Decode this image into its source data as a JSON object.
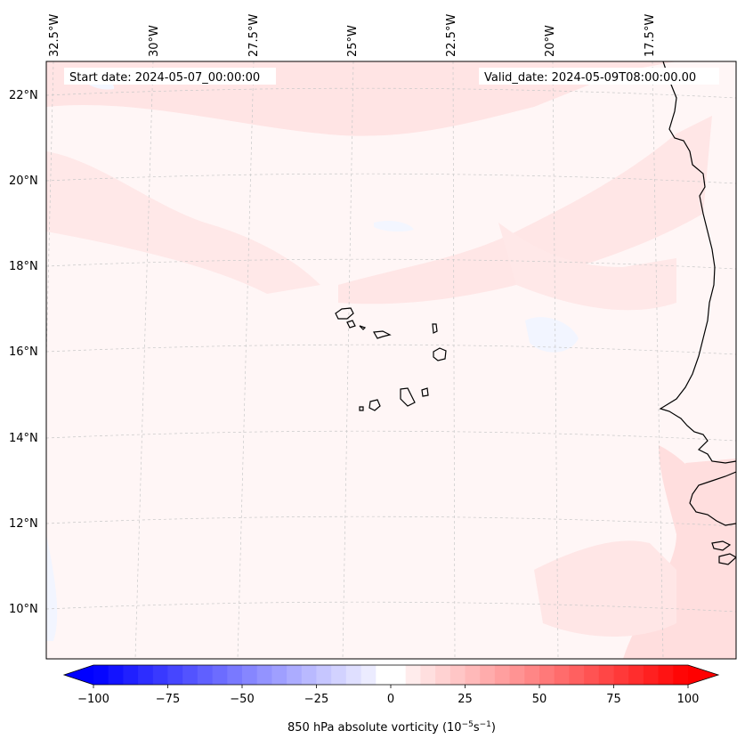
{
  "map": {
    "start_date": "Start date: 2024-05-07_00:00:00",
    "valid_date": "Valid_date: 2024-05-09T08:00:00.00",
    "lon_labels": [
      "32.5°W",
      "30°W",
      "27.5°W",
      "25°W",
      "22.5°W",
      "20°W",
      "17.5°W"
    ],
    "lat_labels": [
      "22°N",
      "20°N",
      "18°N",
      "16°N",
      "14°N",
      "12°N",
      "10°N"
    ]
  },
  "colorbar": {
    "ticks": [
      "−100",
      "−75",
      "−50",
      "−25",
      "0",
      "25",
      "50",
      "75",
      "100"
    ],
    "title_prefix": "850 hPa absolute vorticity (10",
    "title_exp1": "−5",
    "title_mid": "s",
    "title_exp2": "−1",
    "title_suffix": ")",
    "min_value": -100,
    "max_value": 100,
    "levels": 40,
    "min_color": "#0000ff",
    "mid_color": "#ffffff",
    "max_color": "#ff0000"
  },
  "colors": {
    "coastline": "#000000",
    "gridline": "#c8c8c8",
    "background_field": "#fff6f6",
    "positive_field": "#ffe2e2",
    "negative_field": "#f3f6ff"
  }
}
